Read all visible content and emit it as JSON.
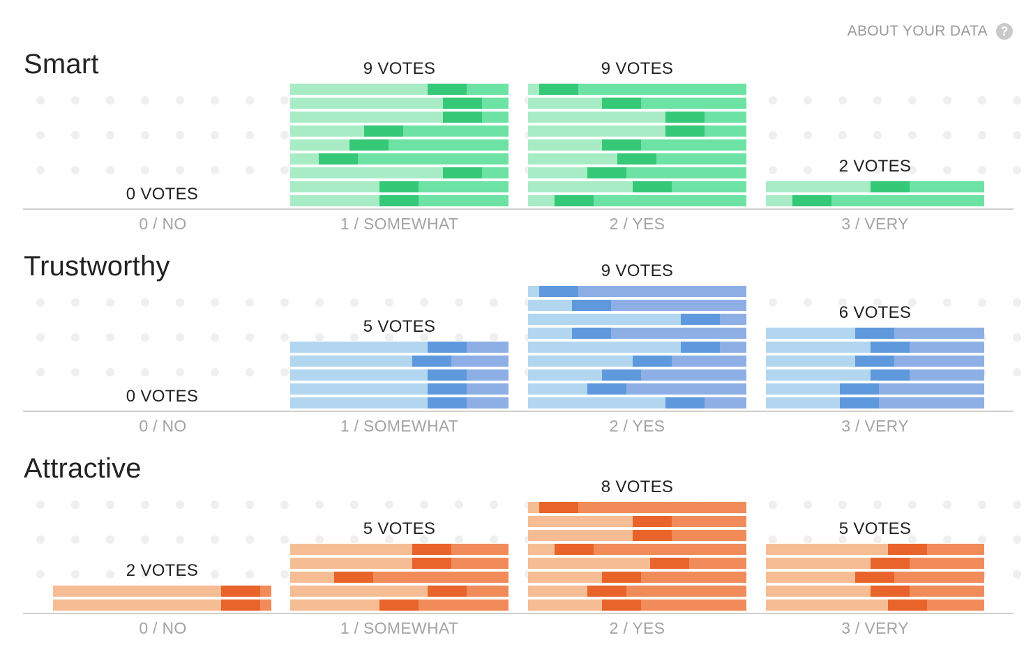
{
  "about": {
    "label": "ABOUT YOUR DATA",
    "icon": "question-circle-icon"
  },
  "categories": [
    "0 / NO",
    "1 / SOMEWHAT",
    "2 / YES",
    "3 / VERY"
  ],
  "sections": [
    {
      "title": "Smart",
      "colors": {
        "a": "#a8ecc6",
        "b": "#34c877",
        "c": "#6ce2a4"
      },
      "columns": [
        {
          "label": "0 VOTES",
          "votes": 0,
          "marks": []
        },
        {
          "label": "9 VOTES",
          "votes": 9,
          "marks": [
            0.63,
            0.7,
            0.7,
            0.34,
            0.27,
            0.13,
            0.7,
            0.41,
            0.41
          ]
        },
        {
          "label": "9 VOTES",
          "votes": 9,
          "marks": [
            0.05,
            0.34,
            0.63,
            0.63,
            0.34,
            0.41,
            0.27,
            0.48,
            0.12
          ]
        },
        {
          "label": "2 VOTES",
          "votes": 2,
          "marks": [
            0.48,
            0.12
          ]
        }
      ]
    },
    {
      "title": "Trustworthy",
      "colors": {
        "a": "#b2d6ef",
        "b": "#5d99dc",
        "c": "#8eaee6"
      },
      "columns": [
        {
          "label": "0 VOTES",
          "votes": 0,
          "marks": []
        },
        {
          "label": "5 VOTES",
          "votes": 5,
          "marks": [
            0.63,
            0.56,
            0.63,
            0.63,
            0.63
          ]
        },
        {
          "label": "9 VOTES",
          "votes": 9,
          "marks": [
            0.05,
            0.2,
            0.7,
            0.2,
            0.7,
            0.48,
            0.34,
            0.27,
            0.63
          ]
        },
        {
          "label": "6 VOTES",
          "votes": 6,
          "marks": [
            0.41,
            0.48,
            0.41,
            0.48,
            0.34,
            0.34
          ]
        }
      ]
    },
    {
      "title": "Attractive",
      "colors": {
        "a": "#f6bd94",
        "b": "#e8642a",
        "c": "#f18c5a"
      },
      "columns": [
        {
          "label": "2 VOTES",
          "votes": 2,
          "marks": [
            0.77,
            0.77
          ]
        },
        {
          "label": "5 VOTES",
          "votes": 5,
          "marks": [
            0.56,
            0.56,
            0.2,
            0.63,
            0.41
          ]
        },
        {
          "label": "8 VOTES",
          "votes": 8,
          "marks": [
            0.05,
            0.48,
            0.48,
            0.12,
            0.56,
            0.34,
            0.27,
            0.34
          ]
        },
        {
          "label": "5 VOTES",
          "votes": 5,
          "marks": [
            0.56,
            0.48,
            0.41,
            0.48,
            0.56
          ]
        }
      ]
    }
  ]
}
